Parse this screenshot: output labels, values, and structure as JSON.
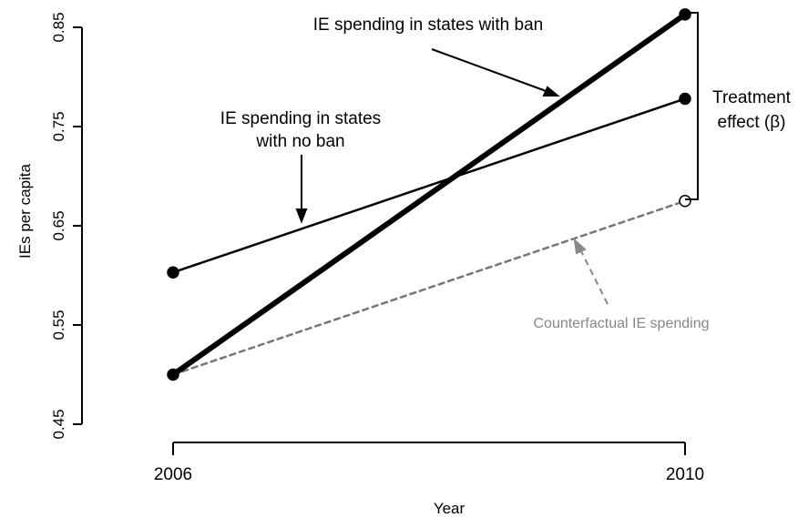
{
  "chart_data": {
    "type": "line",
    "x": [
      2006,
      2010
    ],
    "xticks": [
      "2006",
      "2010"
    ],
    "yticks": [
      "0.45",
      "0.55",
      "0.65",
      "0.75",
      "0.85"
    ],
    "ytick_values": [
      0.45,
      0.55,
      0.65,
      0.75,
      0.85
    ],
    "xlabel": "Year",
    "ylabel": "IEs per capita",
    "xlim": [
      2006,
      2010
    ],
    "ylim": [
      0.45,
      0.85
    ],
    "grid": false,
    "series": [
      {
        "key": "no_ban",
        "values": [
          0.603,
          0.778
        ],
        "style": "solid",
        "weight": "thin",
        "color": "#000000"
      },
      {
        "key": "ban",
        "values": [
          0.5,
          0.863
        ],
        "style": "solid",
        "weight": "thick",
        "color": "#000000"
      },
      {
        "key": "counterfactual",
        "values": [
          0.5,
          0.675
        ],
        "style": "dashed",
        "weight": "thin",
        "color": "#777777",
        "last_marker": "open"
      }
    ],
    "annotations": {
      "ban_label": "IE spending in states with ban",
      "no_ban_label_1": "IE spending in states",
      "no_ban_label_2": "with no ban",
      "counterfactual_label": "Counterfactual IE spending",
      "treatment_label_1": "Treatment",
      "treatment_label_2": "effect (β)"
    }
  }
}
